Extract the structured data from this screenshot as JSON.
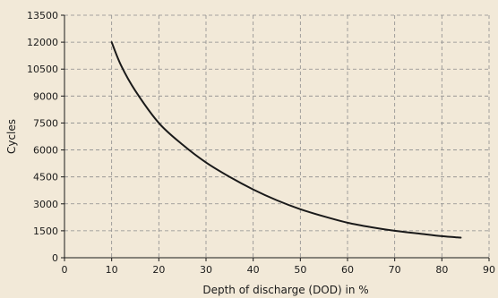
{
  "chart_data": {
    "type": "line",
    "xlabel": "Depth of discharge (DOD) in %",
    "ylabel": "Cycles",
    "xlim": [
      0,
      90
    ],
    "ylim": [
      0,
      13500
    ],
    "x_ticks": [
      "0",
      "10",
      "20",
      "30",
      "40",
      "50",
      "60",
      "70",
      "80",
      "90"
    ],
    "y_ticks": [
      "0",
      "1500",
      "3000",
      "4500",
      "6000",
      "7500",
      "9000",
      "10500",
      "12000",
      "13500"
    ],
    "grid": true,
    "series": [
      {
        "x": [
          10,
          12,
          15,
          20,
          25,
          30,
          35,
          40,
          45,
          50,
          55,
          60,
          65,
          70,
          75,
          80,
          84
        ],
        "values": [
          12000,
          10700,
          9300,
          7500,
          6300,
          5300,
          4500,
          3800,
          3200,
          2700,
          2300,
          1950,
          1700,
          1500,
          1350,
          1200,
          1120
        ]
      }
    ]
  },
  "colors": {
    "background": "#f2e9d8",
    "line": "#1a1a1a",
    "grid": "#8c8c8c",
    "axis": "#1a1a1a"
  }
}
